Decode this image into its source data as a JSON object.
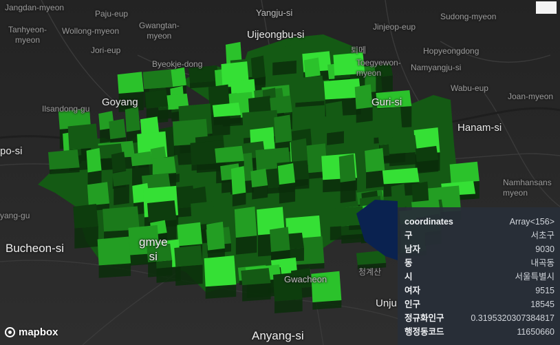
{
  "map": {
    "labels": [
      {
        "id": "jangdan",
        "text": "Jangdan-myeon"
      },
      {
        "id": "paju",
        "text": "Paju-eup"
      },
      {
        "id": "yangju",
        "text": "Yangju-si"
      },
      {
        "id": "sudong",
        "text": "Sudong-myeon"
      },
      {
        "id": "tanhyeon",
        "text": "Tanhyeon-\nmyeon"
      },
      {
        "id": "wollong",
        "text": "Wollong-myeon"
      },
      {
        "id": "gwangtan",
        "text": "Gwangtan-\nmyeon"
      },
      {
        "id": "uijeongbu",
        "text": "Uijeongbu-si"
      },
      {
        "id": "jinjeop",
        "text": "Jinjeop-eup"
      },
      {
        "id": "jori",
        "text": "Jori-eup"
      },
      {
        "id": "toeme",
        "text": "퇴메"
      },
      {
        "id": "hopyeong",
        "text": "Hopyeongdong"
      },
      {
        "id": "byeokje",
        "text": "Byeokje-dong"
      },
      {
        "id": "toegyewon",
        "text": "Toegyewon-\nmyeon"
      },
      {
        "id": "namyangju",
        "text": "Namyangju-si"
      },
      {
        "id": "wabu",
        "text": "Wabu-eup"
      },
      {
        "id": "joanmyeon",
        "text": "Joan-myeon"
      },
      {
        "id": "goyang",
        "text": "Goyang"
      },
      {
        "id": "ilsandong",
        "text": "Ilsandong-gu"
      },
      {
        "id": "guri",
        "text": "Guri-si"
      },
      {
        "id": "hanam",
        "text": "Hanam-si"
      },
      {
        "id": "pocheon",
        "text": "po-si"
      },
      {
        "id": "namhansan",
        "text": "Namhansans\nmyeon"
      },
      {
        "id": "yanggu",
        "text": "yang-gu"
      },
      {
        "id": "bucheon",
        "text": "Bucheon-si"
      },
      {
        "id": "gwangmyeong",
        "text": "gmye\nsi"
      },
      {
        "id": "cheonggye",
        "text": "청계산"
      },
      {
        "id": "gwacheon",
        "text": "Gwacheon"
      },
      {
        "id": "uiwang",
        "text": "Unju"
      },
      {
        "id": "anyang",
        "text": "Anyang-si"
      }
    ],
    "attribution": "mapbox",
    "extrusion_colors": [
      "#0d3d0d",
      "#145a14",
      "#1b7a1b",
      "#239e23",
      "#2bc22b",
      "#35e035"
    ],
    "selected_color": "#07204d"
  },
  "tooltip": {
    "rows": [
      {
        "key": "coordinates",
        "value": "Array<156>"
      },
      {
        "key": "구",
        "value": "서초구"
      },
      {
        "key": "남자",
        "value": "9030"
      },
      {
        "key": "동",
        "value": "내곡동"
      },
      {
        "key": "시",
        "value": "서울특별시"
      },
      {
        "key": "여자",
        "value": "9515"
      },
      {
        "key": "인구",
        "value": "18545"
      },
      {
        "key": "정규화인구",
        "value": "0.3195320307384817"
      },
      {
        "key": "행정동코드",
        "value": "11650660"
      }
    ]
  }
}
